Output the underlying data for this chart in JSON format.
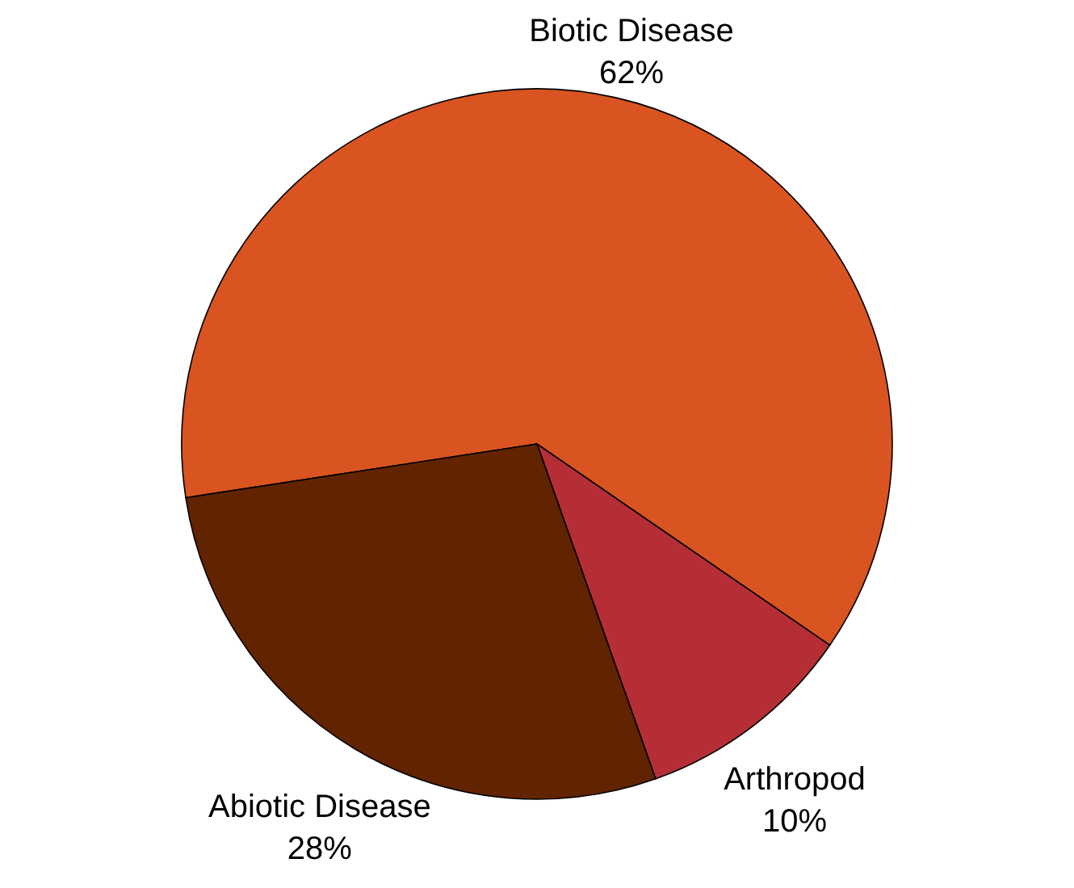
{
  "chart_data": {
    "type": "pie",
    "categories": [
      "Biotic Disease",
      "Arthropod",
      "Abiotic Disease"
    ],
    "values": [
      62,
      10,
      28
    ],
    "value_labels": [
      "62%",
      "10%",
      "28%"
    ],
    "colors": [
      "#d95420",
      "#b52e35",
      "#622300"
    ],
    "legend": false
  }
}
